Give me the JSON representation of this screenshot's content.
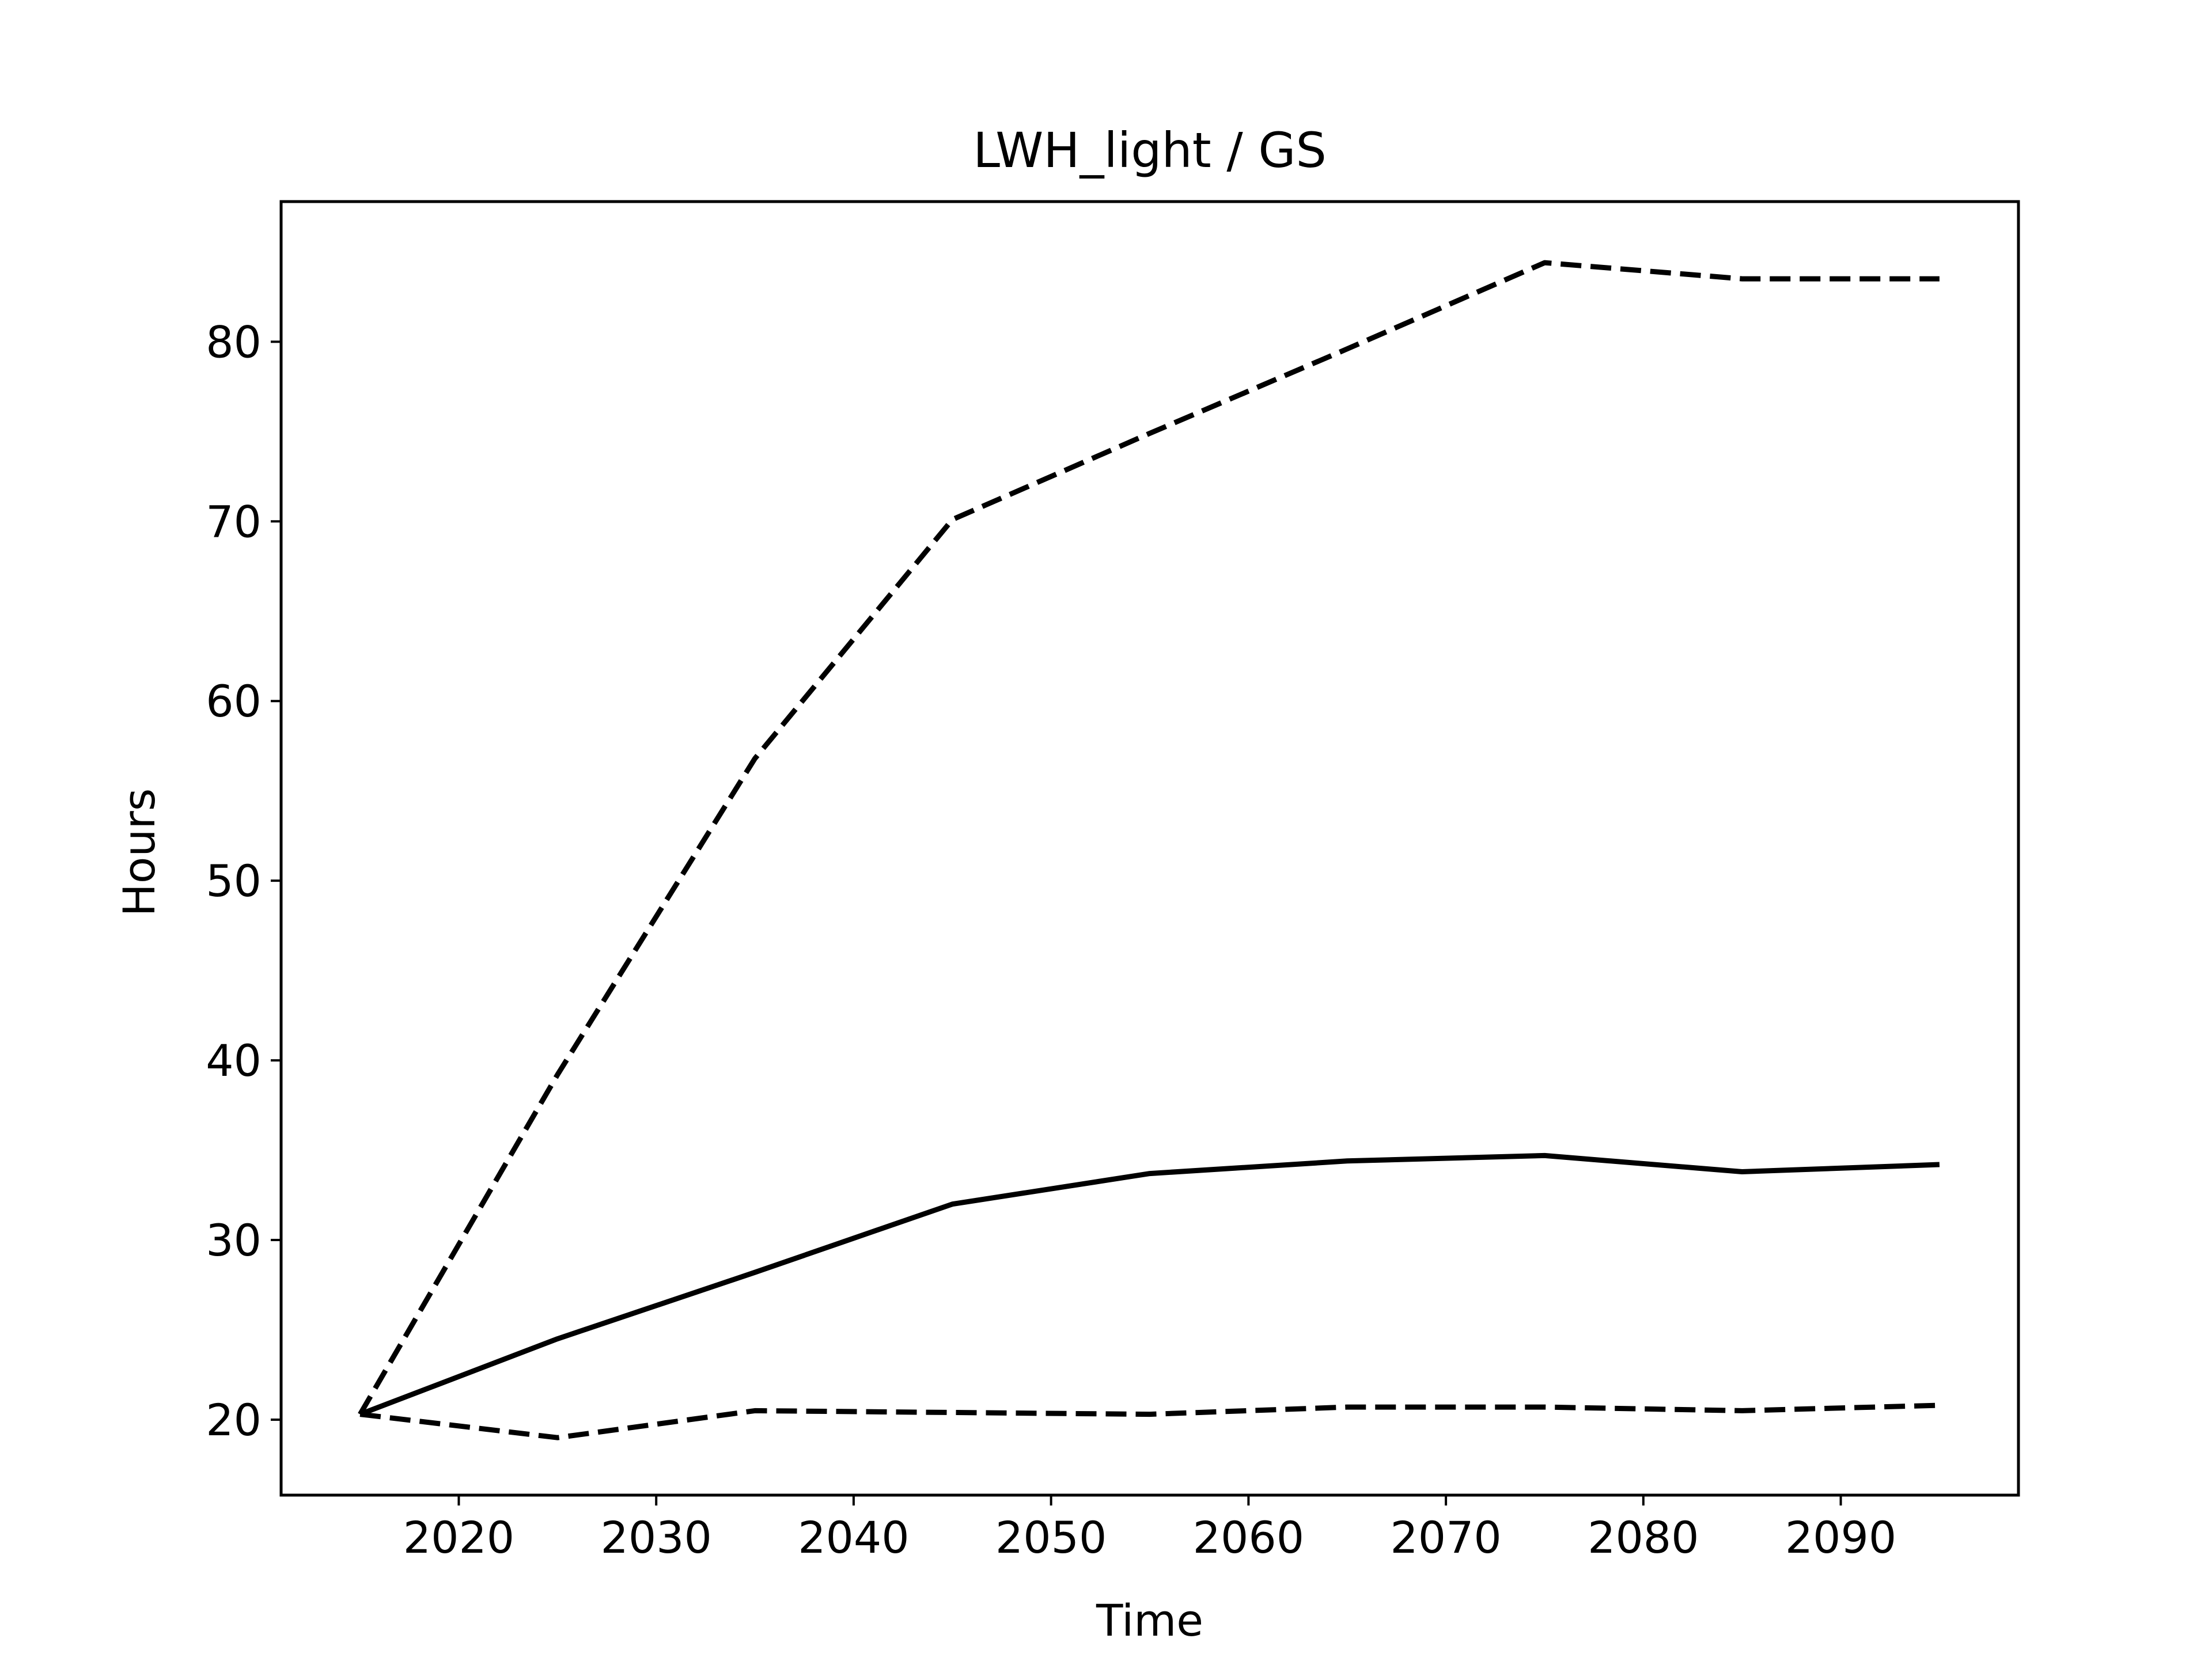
{
  "chart_data": {
    "type": "line",
    "title": "LWH_light / GS",
    "xlabel": "Time",
    "ylabel": "Hours",
    "xlim": [
      2011,
      2099
    ],
    "ylim": [
      15.8,
      87.8
    ],
    "x_ticks": [
      2020,
      2030,
      2040,
      2050,
      2060,
      2070,
      2080,
      2090
    ],
    "y_ticks": [
      20,
      30,
      40,
      50,
      60,
      70,
      80
    ],
    "grid": false,
    "legend": "none",
    "x": [
      2015,
      2025,
      2035,
      2045,
      2055,
      2065,
      2075,
      2085,
      2095
    ],
    "series": [
      {
        "style": "dashed",
        "color": "#000000",
        "values": [
          20.3,
          39.2,
          56.8,
          70.1,
          74.9,
          79.6,
          84.4,
          83.5,
          83.5
        ]
      },
      {
        "style": "solid",
        "color": "#000000",
        "values": [
          20.3,
          24.5,
          28.2,
          32.0,
          33.7,
          34.4,
          34.7,
          33.8,
          34.2
        ]
      },
      {
        "style": "dashed",
        "color": "#000000",
        "values": [
          20.3,
          19.0,
          20.5,
          20.4,
          20.3,
          20.7,
          20.7,
          20.5,
          20.8
        ]
      }
    ]
  }
}
